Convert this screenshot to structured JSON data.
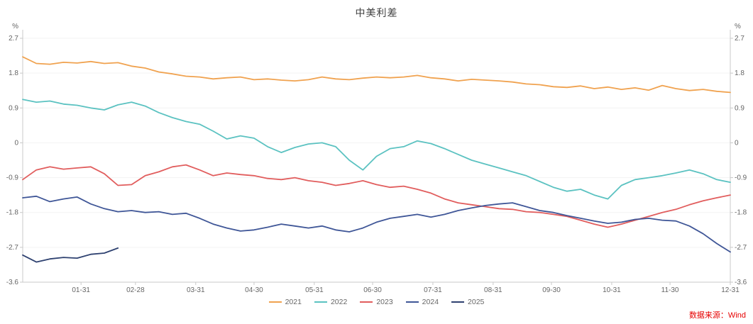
{
  "header": {
    "title": "中美利差"
  },
  "source": {
    "label": "数据来源：Wind",
    "color": "#e60000"
  },
  "axes": {
    "unit_label": "%",
    "y_ticks": [
      {
        "label": "2.7",
        "value": 2.7
      },
      {
        "label": "1.8",
        "value": 1.8
      },
      {
        "label": "0.9",
        "value": 0.9
      },
      {
        "label": "0",
        "value": 0
      },
      {
        "label": "-0.9",
        "value": -0.9
      },
      {
        "label": "-1.8",
        "value": -1.8
      },
      {
        "label": "-2.7",
        "value": -2.7
      },
      {
        "label": "-3.6",
        "value": -3.6
      }
    ],
    "x_ticks": [
      {
        "label": "01-31",
        "day": 30
      },
      {
        "label": "02-28",
        "day": 58
      },
      {
        "label": "03-31",
        "day": 89
      },
      {
        "label": "04-30",
        "day": 119
      },
      {
        "label": "05-31",
        "day": 150
      },
      {
        "label": "06-30",
        "day": 180
      },
      {
        "label": "07-31",
        "day": 211
      },
      {
        "label": "08-31",
        "day": 242
      },
      {
        "label": "09-30",
        "day": 272
      },
      {
        "label": "10-31",
        "day": 303
      },
      {
        "label": "11-30",
        "day": 333
      },
      {
        "label": "12-31",
        "day": 364
      }
    ],
    "x_min": 0,
    "x_max": 364
  },
  "chart_data": {
    "type": "line",
    "title": "中美利差",
    "xlabel": "",
    "ylabel": "%",
    "ylim": [
      -3.6,
      2.7
    ],
    "x_unit": "day-of-year",
    "legend_position": "bottom",
    "grid": "faint-horizontal",
    "series": [
      {
        "name": "2021",
        "color": "#F0A24F",
        "start_day": 0,
        "step_days": 7,
        "values": [
          2.22,
          2.05,
          2.03,
          2.08,
          2.06,
          2.1,
          2.05,
          2.07,
          1.98,
          1.93,
          1.83,
          1.78,
          1.72,
          1.7,
          1.65,
          1.68,
          1.7,
          1.63,
          1.65,
          1.62,
          1.6,
          1.63,
          1.7,
          1.65,
          1.63,
          1.67,
          1.7,
          1.68,
          1.7,
          1.74,
          1.68,
          1.65,
          1.6,
          1.64,
          1.62,
          1.6,
          1.57,
          1.52,
          1.5,
          1.45,
          1.43,
          1.47,
          1.4,
          1.44,
          1.38,
          1.42,
          1.36,
          1.48,
          1.4,
          1.35,
          1.38,
          1.33,
          1.3
        ]
      },
      {
        "name": "2022",
        "color": "#5BC2C1",
        "start_day": 0,
        "step_days": 7,
        "values": [
          1.12,
          1.05,
          1.08,
          1.0,
          0.97,
          0.9,
          0.85,
          0.98,
          1.05,
          0.95,
          0.78,
          0.65,
          0.55,
          0.48,
          0.3,
          0.1,
          0.18,
          0.12,
          -0.1,
          -0.25,
          -0.12,
          -0.03,
          0.0,
          -0.1,
          -0.45,
          -0.7,
          -0.35,
          -0.15,
          -0.1,
          0.05,
          -0.02,
          -0.15,
          -0.3,
          -0.45,
          -0.55,
          -0.65,
          -0.75,
          -0.85,
          -1.0,
          -1.15,
          -1.25,
          -1.2,
          -1.35,
          -1.45,
          -1.1,
          -0.95,
          -0.9,
          -0.85,
          -0.78,
          -0.7,
          -0.8,
          -0.95,
          -1.02
        ]
      },
      {
        "name": "2023",
        "color": "#E15D5D",
        "start_day": 0,
        "step_days": 7,
        "values": [
          -0.95,
          -0.7,
          -0.62,
          -0.68,
          -0.65,
          -0.62,
          -0.8,
          -1.1,
          -1.08,
          -0.85,
          -0.75,
          -0.62,
          -0.57,
          -0.7,
          -0.85,
          -0.78,
          -0.82,
          -0.85,
          -0.92,
          -0.95,
          -0.9,
          -0.98,
          -1.02,
          -1.1,
          -1.05,
          -0.98,
          -1.08,
          -1.15,
          -1.12,
          -1.2,
          -1.3,
          -1.45,
          -1.55,
          -1.6,
          -1.65,
          -1.7,
          -1.72,
          -1.78,
          -1.8,
          -1.85,
          -1.9,
          -2.0,
          -2.1,
          -2.18,
          -2.1,
          -2.0,
          -1.9,
          -1.8,
          -1.72,
          -1.6,
          -1.5,
          -1.42,
          -1.35
        ]
      },
      {
        "name": "2024",
        "color": "#3F5697",
        "start_day": 0,
        "step_days": 7,
        "values": [
          -1.42,
          -1.38,
          -1.52,
          -1.45,
          -1.4,
          -1.58,
          -1.7,
          -1.78,
          -1.75,
          -1.8,
          -1.78,
          -1.85,
          -1.82,
          -1.95,
          -2.1,
          -2.2,
          -2.28,
          -2.25,
          -2.18,
          -2.1,
          -2.15,
          -2.2,
          -2.15,
          -2.25,
          -2.3,
          -2.2,
          -2.05,
          -1.95,
          -1.9,
          -1.85,
          -1.92,
          -1.85,
          -1.75,
          -1.68,
          -1.62,
          -1.58,
          -1.55,
          -1.65,
          -1.75,
          -1.8,
          -1.88,
          -1.95,
          -2.02,
          -2.08,
          -2.05,
          -1.98,
          -1.95,
          -2.0,
          -2.02,
          -2.15,
          -2.35,
          -2.6,
          -2.82
        ]
      },
      {
        "name": "2025",
        "color": "#2E4170",
        "start_day": 0,
        "step_days": 7,
        "values": [
          -2.9,
          -3.08,
          -3.0,
          -2.96,
          -2.98,
          -2.88,
          -2.85,
          -2.72
        ]
      }
    ]
  }
}
